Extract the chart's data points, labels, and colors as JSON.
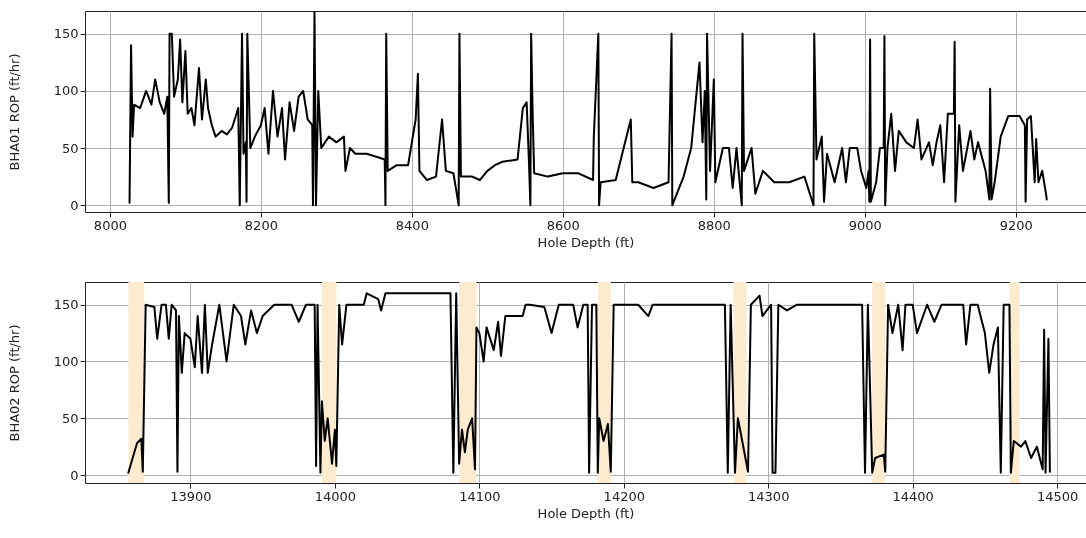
{
  "chart_data": [
    {
      "type": "line",
      "xlabel": "Hole Depth (ft)",
      "ylabel": "BHA01 ROP (ft/hr)",
      "xlim": [
        7967,
        9293
      ],
      "ylim": [
        -6,
        170
      ],
      "xticks": [
        8000,
        8200,
        8400,
        8600,
        8800,
        9000,
        9200
      ],
      "yticks": [
        0,
        50,
        100,
        150
      ],
      "grid": true,
      "marker": "none",
      "line_style": "solid",
      "series": [
        {
          "color": "#000000",
          "x": [
            8026,
            8028,
            8030,
            8032,
            8040,
            8048,
            8055,
            8060,
            8066,
            8072,
            8076,
            8078,
            8079,
            8082,
            8085,
            8090,
            8093,
            8096,
            8100,
            8103,
            8108,
            8112,
            8118,
            8122,
            8127,
            8130,
            8135,
            8140,
            8148,
            8155,
            8162,
            8170,
            8172,
            8175,
            8177,
            8180,
            8181,
            8182,
            8186,
            8192,
            8200,
            8205,
            8210,
            8216,
            8222,
            8228,
            8232,
            8238,
            8244,
            8250,
            8256,
            8262,
            8268,
            8269,
            8271,
            8273,
            8276,
            8280,
            8290,
            8300,
            8310,
            8312,
            8318,
            8325,
            8340,
            8355,
            8364,
            8365,
            8366,
            8368,
            8380,
            8395,
            8405,
            8408,
            8410,
            8420,
            8432,
            8440,
            8445,
            8455,
            8462,
            8463,
            8465,
            8480,
            8490,
            8500,
            8510,
            8520,
            8540,
            8547,
            8552,
            8555,
            8557,
            8558,
            8560,
            8562,
            8580,
            8600,
            8620,
            8640,
            8641,
            8647,
            8648,
            8650,
            8670,
            8690,
            8692,
            8700,
            8720,
            8740,
            8744,
            8745,
            8760,
            8770,
            8781,
            8785,
            8788,
            8790,
            8791,
            8795,
            8800,
            8802,
            8812,
            8820,
            8825,
            8830,
            8837,
            8838,
            8840,
            8850,
            8855,
            8865,
            8880,
            8900,
            8920,
            8932,
            8933,
            8936,
            8943,
            8946,
            8950,
            8960,
            8970,
            8975,
            8980,
            8990,
            8995,
            9002,
            9005,
            9006,
            9007,
            9008,
            9015,
            9020,
            9025,
            9026,
            9027,
            9030,
            9035,
            9040,
            9045,
            9055,
            9065,
            9070,
            9075,
            9085,
            9090,
            9095,
            9100,
            9105,
            9110,
            9118,
            9119,
            9120,
            9125,
            9130,
            9140,
            9145,
            9150,
            9160,
            9165,
            9166,
            9168,
            9172,
            9180,
            9190,
            9205,
            9212,
            9213,
            9215,
            9220,
            9225,
            9227,
            9230,
            9235,
            9240,
            9241
          ],
          "values": [
            2,
            140,
            60,
            88,
            85,
            100,
            88,
            110,
            90,
            80,
            95,
            2,
            150,
            150,
            95,
            110,
            145,
            90,
            135,
            80,
            85,
            70,
            120,
            75,
            110,
            85,
            70,
            60,
            65,
            62,
            68,
            85,
            0,
            150,
            45,
            55,
            3,
            150,
            50,
            60,
            70,
            85,
            45,
            100,
            60,
            85,
            40,
            90,
            65,
            95,
            100,
            75,
            70,
            0,
            170,
            0,
            100,
            50,
            60,
            55,
            60,
            30,
            50,
            45,
            45,
            42,
            40,
            0,
            150,
            30,
            35,
            35,
            75,
            115,
            30,
            22,
            25,
            75,
            30,
            28,
            0,
            150,
            25,
            25,
            22,
            30,
            35,
            38,
            40,
            85,
            90,
            40,
            0,
            150,
            80,
            28,
            25,
            28,
            28,
            22,
            60,
            150,
            0,
            20,
            22,
            75,
            20,
            20,
            15,
            20,
            150,
            0,
            25,
            50,
            125,
            55,
            100,
            5,
            150,
            30,
            110,
            20,
            50,
            50,
            15,
            50,
            0,
            150,
            30,
            50,
            10,
            30,
            20,
            20,
            25,
            0,
            150,
            40,
            60,
            3,
            45,
            20,
            50,
            20,
            50,
            50,
            30,
            15,
            30,
            3,
            145,
            3,
            20,
            50,
            50,
            148,
            0,
            50,
            80,
            30,
            65,
            55,
            50,
            75,
            40,
            55,
            35,
            55,
            70,
            20,
            80,
            80,
            143,
            3,
            70,
            30,
            65,
            40,
            55,
            30,
            5,
            102,
            5,
            20,
            60,
            78,
            78,
            70,
            3,
            75,
            78,
            20,
            58,
            20,
            30,
            10,
            5
          ]
        }
      ]
    },
    {
      "type": "line",
      "xlabel": "Hole Depth (ft)",
      "ylabel": "BHA02 ROP (ft/hr)",
      "xlim": [
        13827,
        14520
      ],
      "ylim": [
        -7,
        170
      ],
      "xticks": [
        13900,
        14000,
        14100,
        14200,
        14300,
        14400,
        14500
      ],
      "yticks": [
        0,
        50,
        100,
        150
      ],
      "grid": true,
      "marker": "none",
      "line_style": "solid",
      "bands": [
        {
          "axis": "x",
          "from": 13857,
          "to": 13868,
          "color": "#fdebd0"
        },
        {
          "axis": "x",
          "from": 13991,
          "to": 14001,
          "color": "#fdebd0"
        },
        {
          "axis": "x",
          "from": 14086,
          "to": 14098,
          "color": "#fdebd0"
        },
        {
          "axis": "x",
          "from": 14182,
          "to": 14191,
          "color": "#fdebd0"
        },
        {
          "axis": "x",
          "from": 14276,
          "to": 14285,
          "color": "#fdebd0"
        },
        {
          "axis": "x",
          "from": 14372,
          "to": 14381,
          "color": "#fdebd0"
        },
        {
          "axis": "x",
          "from": 14467,
          "to": 14474,
          "color": "#fdebd0"
        }
      ],
      "series": [
        {
          "color": "#000000",
          "x": [
            13857,
            13860,
            13863,
            13866,
            13867,
            13869,
            13875,
            13877,
            13880,
            13883,
            13885,
            13887,
            13890,
            13891,
            13892,
            13894,
            13896,
            13900,
            13903,
            13905,
            13908,
            13910,
            13912,
            13915,
            13920,
            13925,
            13930,
            13935,
            13938,
            13942,
            13946,
            13950,
            13958,
            13970,
            13975,
            13980,
            13986,
            13987,
            13988,
            13990,
            13991,
            13993,
            13995,
            13998,
            14000,
            14001,
            14003,
            14005,
            14008,
            14020,
            14022,
            14030,
            14032,
            14035,
            14080,
            14082,
            14084,
            14086,
            14088,
            14090,
            14092,
            14095,
            14097,
            14098,
            14100,
            14103,
            14105,
            14110,
            14113,
            14115,
            14118,
            14130,
            14132,
            14135,
            14145,
            14150,
            14155,
            14165,
            14168,
            14172,
            14175,
            14176,
            14178,
            14181,
            14182,
            14183,
            14186,
            14189,
            14191,
            14193,
            14210,
            14217,
            14220,
            14270,
            14272,
            14274,
            14277,
            14279,
            14282,
            14286,
            14288,
            14294,
            14296,
            14302,
            14303,
            14305,
            14307,
            14313,
            14320,
            14365,
            14367,
            14369,
            14372,
            14374,
            14380,
            14381,
            14383,
            14386,
            14390,
            14393,
            14395,
            14400,
            14403,
            14410,
            14415,
            14420,
            14435,
            14437,
            14440,
            14445,
            14450,
            14453,
            14456,
            14459,
            14461,
            14463,
            14467,
            14468,
            14470,
            14475,
            14478,
            14482,
            14486,
            14490,
            14491,
            14492,
            14494,
            14495
          ],
          "values": [
            2,
            15,
            28,
            32,
            3,
            150,
            148,
            120,
            150,
            150,
            120,
            150,
            145,
            3,
            140,
            90,
            125,
            120,
            95,
            140,
            90,
            150,
            90,
            115,
            150,
            100,
            150,
            140,
            115,
            145,
            125,
            140,
            150,
            150,
            135,
            150,
            150,
            8,
            150,
            2,
            65,
            30,
            50,
            10,
            40,
            8,
            150,
            115,
            150,
            150,
            160,
            155,
            145,
            160,
            160,
            2,
            160,
            10,
            40,
            20,
            40,
            50,
            5,
            130,
            125,
            100,
            130,
            110,
            135,
            105,
            140,
            140,
            150,
            150,
            148,
            125,
            150,
            150,
            130,
            150,
            150,
            2,
            150,
            150,
            2,
            50,
            30,
            45,
            3,
            150,
            150,
            140,
            150,
            150,
            2,
            150,
            2,
            50,
            30,
            3,
            150,
            158,
            140,
            150,
            2,
            2,
            150,
            145,
            150,
            150,
            2,
            150,
            2,
            15,
            18,
            3,
            150,
            125,
            150,
            110,
            150,
            150,
            125,
            150,
            135,
            150,
            150,
            115,
            150,
            150,
            125,
            90,
            115,
            130,
            2,
            150,
            150,
            2,
            30,
            25,
            30,
            15,
            25,
            5,
            128,
            2,
            120,
            3
          ]
        }
      ]
    }
  ]
}
